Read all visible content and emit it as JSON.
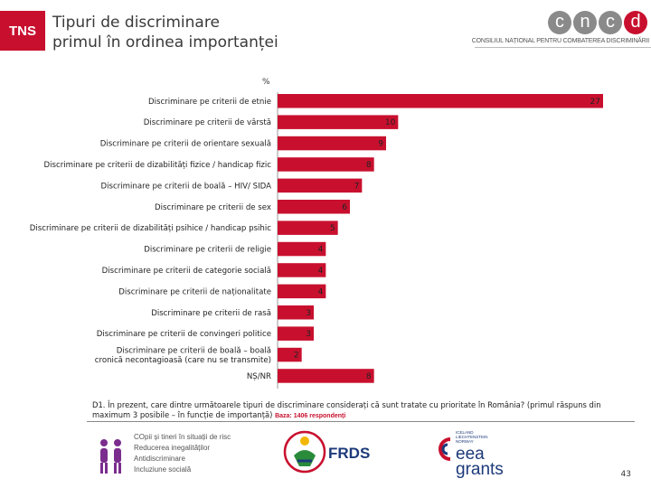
{
  "header": {
    "tns_logo": "TNS",
    "title_line1": "Tipuri de discriminare",
    "title_line2": "primul în ordinea importanței",
    "cncd_letters": [
      "c",
      "n",
      "c",
      "d"
    ],
    "cncd_subtitle": "CONSILIUL NAȚIONAL PENTRU COMBATEREA DISCRIMINĂRII"
  },
  "colors": {
    "bar": "#c8102e",
    "accent": "#c8102e",
    "axis": "#999999"
  },
  "chart_data": {
    "type": "bar",
    "orientation": "horizontal",
    "unit_label": "%",
    "categories": [
      "Discriminare pe criterii de etnie",
      "Discriminare pe criterii de vârstă",
      "Discriminare pe criterii de orientare sexuală",
      "Discriminare pe criterii de dizabilități fizice / handicap fizic",
      "Discriminare pe criterii de boală – HIV/ SIDA",
      "Discriminare pe criterii de sex",
      "Discriminare pe criterii de dizabilități psihice / handicap psihic",
      "Discriminare pe criterii de religie",
      "Discriminare pe criterii de categorie socială",
      "Discriminare pe criterii de naționalitate",
      "Discriminare pe criterii de rasă",
      "Discriminare pe criterii de convingeri politice",
      "Discriminare pe criterii de boală – boală cronică necontagioasă (care nu se transmite)",
      "NȘ/NR"
    ],
    "values": [
      27,
      10,
      9,
      8,
      7,
      6,
      5,
      4,
      4,
      4,
      3,
      3,
      2,
      8
    ],
    "xlim": [
      0,
      27
    ]
  },
  "footnote": {
    "question": "D1. În prezent, care dintre următoarele tipuri de discriminare considerați că sunt tratate cu prioritate în România? (primul răspuns din maximum 3 posibile – în funcție de importanță)",
    "base": "Baza: 1406 respondenți"
  },
  "footer": {
    "cpt_lines": [
      "COpii și tineri în situații de risc",
      "Reducerea inegalităților",
      "Antidiscriminare",
      "Incluziune socială"
    ],
    "frds": "FRDS",
    "eea_donors": [
      "ICELAND",
      "LIECHTENSTEIN",
      "NORWAY"
    ],
    "eea_line1": "eea",
    "eea_line2": "grants",
    "page_number": "43"
  }
}
